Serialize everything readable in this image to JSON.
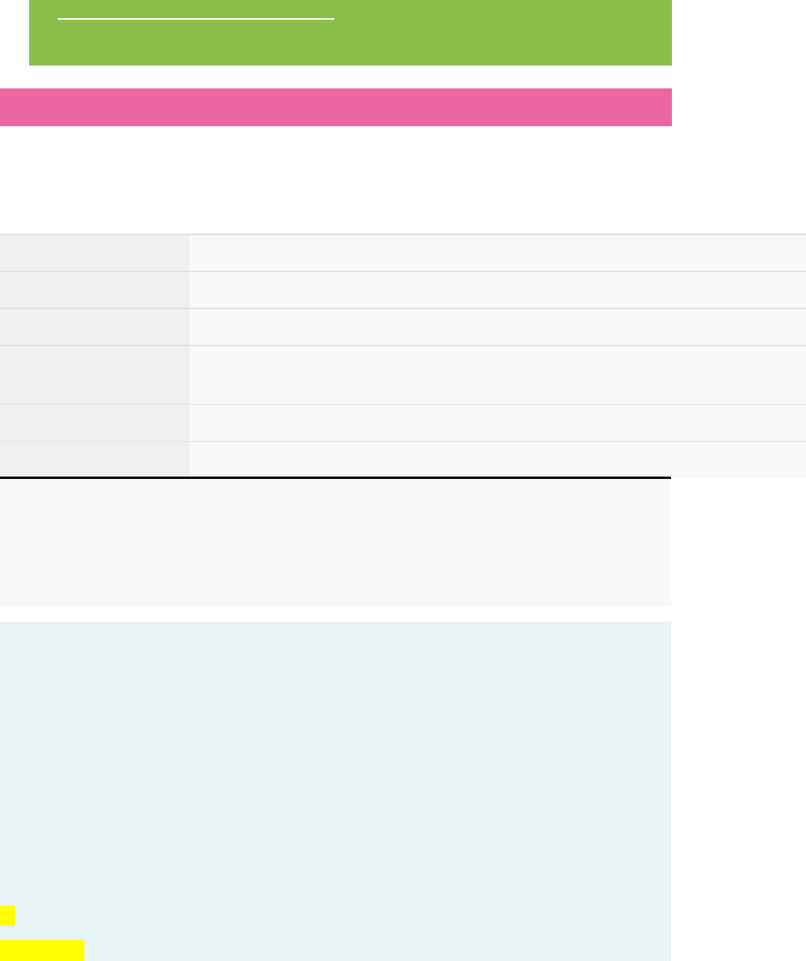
{
  "colors": {
    "hero_bg": "#8bbe4a",
    "banner_bg": "#eb66a2",
    "note_bg": "#f6f8fa",
    "panel_bg": "#e6f2f4",
    "highlight": "#ffff00"
  },
  "table": {
    "rows": [
      {
        "key": "",
        "value": ""
      },
      {
        "key": "",
        "value": ""
      },
      {
        "key": "",
        "value": ""
      },
      {
        "key": "",
        "value": ""
      },
      {
        "key": "",
        "value": ""
      },
      {
        "key": "",
        "value": ""
      }
    ]
  }
}
